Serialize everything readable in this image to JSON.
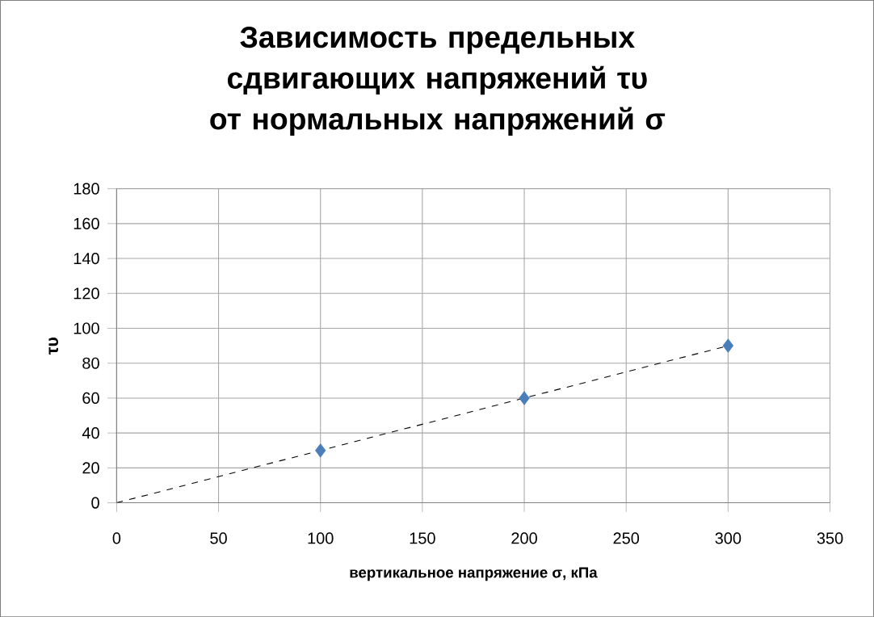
{
  "chart_data": {
    "type": "scatter",
    "title": "Зависимость предельных сдвигающих напряжений τυ от нормальных напряжений σ",
    "xlabel": "вертикальное напряжение σ, кПа",
    "ylabel": "τυ",
    "series": [
      {
        "color": "#4a7ebb",
        "marker": "diamond",
        "x": [
          100,
          200,
          300
        ],
        "values": [
          30,
          60,
          90
        ]
      },
      {
        "type": "line",
        "color": "#000000",
        "marker": "none",
        "line_style": "dashed",
        "x": [
          0,
          300
        ],
        "values": [
          0,
          90
        ]
      }
    ],
    "xlim": [
      0,
      350
    ],
    "ylim": [
      0,
      180
    ],
    "xticks": [
      0,
      50,
      100,
      150,
      200,
      250,
      300,
      350
    ],
    "yticks": [
      0,
      20,
      40,
      60,
      80,
      100,
      120,
      140,
      160,
      180
    ],
    "grid": true
  }
}
